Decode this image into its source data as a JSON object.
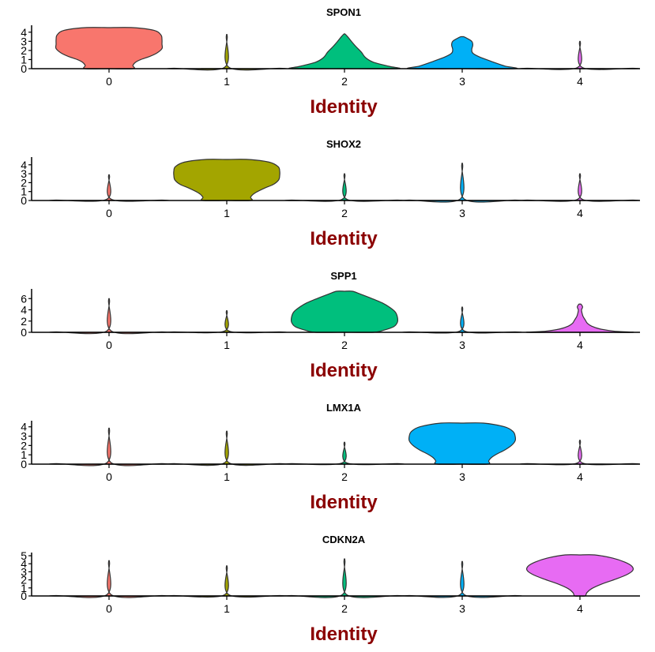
{
  "chart_data": [
    {
      "type": "violin",
      "title": "SPON1",
      "xlabel": "Identity",
      "ylabel": "",
      "categories": [
        "0",
        "1",
        "2",
        "3",
        "4"
      ],
      "yticks": [
        0,
        1,
        2,
        3,
        4
      ],
      "ylim": [
        0,
        4.5
      ],
      "colors": [
        "#F8766D",
        "#A3A500",
        "#00BF7D",
        "#00B0F6",
        "#E76BF3"
      ],
      "violins": [
        {
          "category": "0",
          "min": 0,
          "max": 4.5,
          "profile": [
            [
              0,
              0.45
            ],
            [
              0.35,
              0.45
            ],
            [
              0.7,
              0.5
            ],
            [
              1.0,
              0.6
            ],
            [
              1.3,
              0.75
            ],
            [
              1.7,
              0.9
            ],
            [
              2.2,
              1.0
            ],
            [
              2.7,
              1.0
            ],
            [
              3.2,
              1.0
            ],
            [
              3.7,
              0.98
            ],
            [
              4.2,
              0.85
            ],
            [
              4.5,
              0.45
            ]
          ]
        },
        {
          "category": "1",
          "min": 0,
          "max": 3.5,
          "profile": [
            [
              0,
              1.0
            ],
            [
              0.05,
              1.0
            ],
            [
              0.12,
              0.05
            ],
            [
              3.5,
              0.01
            ]
          ]
        },
        {
          "category": "2",
          "min": 0,
          "max": 3.8,
          "profile": [
            [
              0,
              1.0
            ],
            [
              0.25,
              0.85
            ],
            [
              0.7,
              0.55
            ],
            [
              1.2,
              0.4
            ],
            [
              1.8,
              0.32
            ],
            [
              2.4,
              0.22
            ],
            [
              3.0,
              0.13
            ],
            [
              3.5,
              0.06
            ],
            [
              3.8,
              0.01
            ]
          ]
        },
        {
          "category": "3",
          "min": 0,
          "max": 3.5,
          "profile": [
            [
              0,
              1.0
            ],
            [
              0.3,
              0.8
            ],
            [
              0.8,
              0.55
            ],
            [
              1.3,
              0.32
            ],
            [
              1.7,
              0.2
            ],
            [
              2.1,
              0.18
            ],
            [
              2.6,
              0.2
            ],
            [
              3.0,
              0.18
            ],
            [
              3.3,
              0.1
            ],
            [
              3.5,
              0.03
            ]
          ]
        },
        {
          "category": "4",
          "min": 0,
          "max": 2.8,
          "profile": [
            [
              0,
              1.0
            ],
            [
              0.05,
              1.0
            ],
            [
              0.12,
              0.05
            ],
            [
              2.8,
              0.01
            ]
          ]
        }
      ]
    },
    {
      "type": "violin",
      "title": "SHOX2",
      "xlabel": "Identity",
      "ylabel": "",
      "categories": [
        "0",
        "1",
        "2",
        "3",
        "4"
      ],
      "yticks": [
        0,
        1,
        2,
        3,
        4
      ],
      "ylim": [
        0,
        4.6
      ],
      "colors": [
        "#F8766D",
        "#A3A500",
        "#00BF7D",
        "#00B0F6",
        "#E76BF3"
      ],
      "violins": [
        {
          "category": "0",
          "min": 0,
          "max": 2.7,
          "profile": [
            [
              0,
              1.0
            ],
            [
              0.05,
              1.0
            ],
            [
              0.12,
              0.05
            ],
            [
              2.7,
              0.01
            ]
          ]
        },
        {
          "category": "1",
          "min": 0,
          "max": 4.6,
          "profile": [
            [
              0,
              0.45
            ],
            [
              0.35,
              0.45
            ],
            [
              0.7,
              0.5
            ],
            [
              1.0,
              0.58
            ],
            [
              1.4,
              0.72
            ],
            [
              1.8,
              0.88
            ],
            [
              2.3,
              0.98
            ],
            [
              2.8,
              1.0
            ],
            [
              3.3,
              1.0
            ],
            [
              3.8,
              0.97
            ],
            [
              4.3,
              0.8
            ],
            [
              4.6,
              0.4
            ]
          ]
        },
        {
          "category": "2",
          "min": 0,
          "max": 2.8,
          "profile": [
            [
              0,
              1.0
            ],
            [
              0.05,
              1.0
            ],
            [
              0.12,
              0.05
            ],
            [
              2.8,
              0.01
            ]
          ]
        },
        {
          "category": "3",
          "min": 0,
          "max": 3.9,
          "profile": [
            [
              0,
              1.0
            ],
            [
              0.05,
              1.0
            ],
            [
              0.12,
              0.05
            ],
            [
              3.9,
              0.01
            ]
          ]
        },
        {
          "category": "4",
          "min": 0,
          "max": 2.8,
          "profile": [
            [
              0,
              1.0
            ],
            [
              0.05,
              1.0
            ],
            [
              0.12,
              0.05
            ],
            [
              2.8,
              0.01
            ]
          ]
        }
      ]
    },
    {
      "type": "violin",
      "title": "SPP1",
      "xlabel": "Identity",
      "ylabel": "",
      "categories": [
        "0",
        "1",
        "2",
        "3",
        "4"
      ],
      "yticks": [
        0,
        2,
        4,
        6
      ],
      "ylim": [
        0,
        7.3
      ],
      "colors": [
        "#F8766D",
        "#A3A500",
        "#00BF7D",
        "#00B0F6",
        "#E76BF3"
      ],
      "violins": [
        {
          "category": "0",
          "min": 0,
          "max": 5.6,
          "profile": [
            [
              0,
              1.0
            ],
            [
              0.08,
              1.0
            ],
            [
              0.2,
              0.05
            ],
            [
              5.6,
              0.01
            ]
          ]
        },
        {
          "category": "1",
          "min": 0,
          "max": 3.6,
          "profile": [
            [
              0,
              1.0
            ],
            [
              0.08,
              1.0
            ],
            [
              0.2,
              0.05
            ],
            [
              3.6,
              0.01
            ]
          ]
        },
        {
          "category": "2",
          "min": 0,
          "max": 7.3,
          "profile": [
            [
              0,
              0.55
            ],
            [
              0.4,
              0.75
            ],
            [
              1.0,
              0.93
            ],
            [
              1.8,
              1.0
            ],
            [
              2.7,
              1.0
            ],
            [
              3.6,
              0.96
            ],
            [
              4.4,
              0.86
            ],
            [
              5.2,
              0.72
            ],
            [
              6.0,
              0.52
            ],
            [
              6.8,
              0.3
            ],
            [
              7.3,
              0.15
            ]
          ]
        },
        {
          "category": "3",
          "min": 0,
          "max": 4.2,
          "profile": [
            [
              0,
              1.0
            ],
            [
              0.08,
              1.0
            ],
            [
              0.2,
              0.05
            ],
            [
              4.2,
              0.01
            ]
          ]
        },
        {
          "category": "4",
          "min": 0,
          "max": 5.0,
          "profile": [
            [
              0,
              1.0
            ],
            [
              0.2,
              0.65
            ],
            [
              0.6,
              0.38
            ],
            [
              1.1,
              0.22
            ],
            [
              1.6,
              0.14
            ],
            [
              2.2,
              0.1
            ],
            [
              2.8,
              0.06
            ],
            [
              3.4,
              0.04
            ],
            [
              4.0,
              0.03
            ],
            [
              4.5,
              0.05
            ],
            [
              5.0,
              0.02
            ]
          ]
        }
      ]
    },
    {
      "type": "violin",
      "title": "LMX1A",
      "xlabel": "Identity",
      "ylabel": "",
      "categories": [
        "0",
        "1",
        "2",
        "3",
        "4"
      ],
      "yticks": [
        0,
        1,
        2,
        3,
        4
      ],
      "ylim": [
        0,
        4.4
      ],
      "colors": [
        "#F8766D",
        "#A3A500",
        "#00BF7D",
        "#00B0F6",
        "#E76BF3"
      ],
      "violins": [
        {
          "category": "0",
          "min": 0,
          "max": 3.6,
          "profile": [
            [
              0,
              1.0
            ],
            [
              0.05,
              1.0
            ],
            [
              0.12,
              0.05
            ],
            [
              3.6,
              0.01
            ]
          ]
        },
        {
          "category": "1",
          "min": 0,
          "max": 3.3,
          "profile": [
            [
              0,
              1.0
            ],
            [
              0.05,
              1.0
            ],
            [
              0.12,
              0.05
            ],
            [
              3.3,
              0.01
            ]
          ]
        },
        {
          "category": "2",
          "min": 0,
          "max": 2.2,
          "profile": [
            [
              0,
              1.0
            ],
            [
              0.05,
              1.0
            ],
            [
              0.12,
              0.05
            ],
            [
              2.2,
              0.01
            ]
          ]
        },
        {
          "category": "3",
          "min": 0,
          "max": 4.4,
          "profile": [
            [
              0,
              0.48
            ],
            [
              0.35,
              0.5
            ],
            [
              0.7,
              0.55
            ],
            [
              1.1,
              0.66
            ],
            [
              1.5,
              0.8
            ],
            [
              2.0,
              0.93
            ],
            [
              2.5,
              1.0
            ],
            [
              3.0,
              1.0
            ],
            [
              3.5,
              0.96
            ],
            [
              4.0,
              0.8
            ],
            [
              4.4,
              0.4
            ]
          ]
        },
        {
          "category": "4",
          "min": 0,
          "max": 2.4,
          "profile": [
            [
              0,
              1.0
            ],
            [
              0.05,
              1.0
            ],
            [
              0.12,
              0.05
            ],
            [
              2.4,
              0.01
            ]
          ]
        }
      ]
    },
    {
      "type": "violin",
      "title": "CDKN2A",
      "xlabel": "Identity",
      "ylabel": "",
      "categories": [
        "0",
        "1",
        "2",
        "3",
        "4"
      ],
      "yticks": [
        0,
        1,
        2,
        3,
        4,
        5
      ],
      "ylim": [
        0,
        5.1
      ],
      "colors": [
        "#F8766D",
        "#A3A500",
        "#00BF7D",
        "#00B0F6",
        "#E76BF3"
      ],
      "violins": [
        {
          "category": "0",
          "min": 0,
          "max": 4.1,
          "profile": [
            [
              0,
              1.0
            ],
            [
              0.05,
              1.0
            ],
            [
              0.12,
              0.05
            ],
            [
              4.1,
              0.01
            ]
          ]
        },
        {
          "category": "1",
          "min": 0,
          "max": 3.5,
          "profile": [
            [
              0,
              1.0
            ],
            [
              0.05,
              1.0
            ],
            [
              0.12,
              0.05
            ],
            [
              3.5,
              0.01
            ]
          ]
        },
        {
          "category": "2",
          "min": 0,
          "max": 4.3,
          "profile": [
            [
              0,
              1.0
            ],
            [
              0.05,
              1.0
            ],
            [
              0.12,
              0.05
            ],
            [
              4.3,
              0.01
            ]
          ]
        },
        {
          "category": "3",
          "min": 0,
          "max": 4.0,
          "profile": [
            [
              0,
              1.0
            ],
            [
              0.05,
              1.0
            ],
            [
              0.12,
              0.05
            ],
            [
              4.0,
              0.01
            ]
          ]
        },
        {
          "category": "4",
          "min": 0,
          "max": 5.1,
          "profile": [
            [
              0,
              0.1
            ],
            [
              0.4,
              0.13
            ],
            [
              0.9,
              0.22
            ],
            [
              1.5,
              0.42
            ],
            [
              2.1,
              0.68
            ],
            [
              2.7,
              0.9
            ],
            [
              3.2,
              1.0
            ],
            [
              3.7,
              0.98
            ],
            [
              4.2,
              0.85
            ],
            [
              4.7,
              0.62
            ],
            [
              5.1,
              0.28
            ]
          ]
        }
      ]
    }
  ]
}
